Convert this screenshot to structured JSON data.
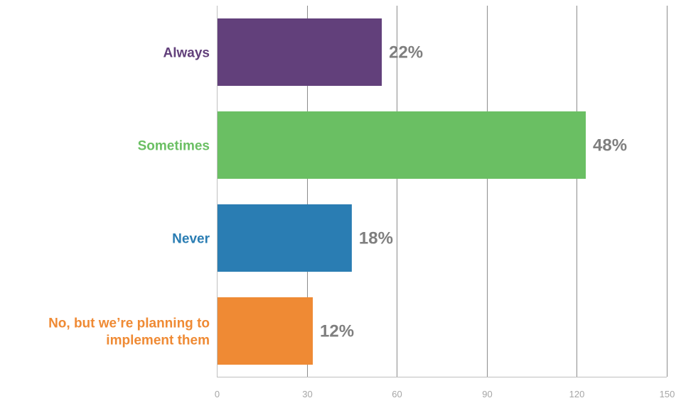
{
  "chart_data": {
    "type": "bar",
    "orientation": "horizontal",
    "categories": [
      "Always",
      "Sometimes",
      "Never",
      "No, but we’re planning to implement them"
    ],
    "category_lines": [
      [
        "Always"
      ],
      [
        "Sometimes"
      ],
      [
        "Never"
      ],
      [
        "No, but we’re planning to",
        "implement them"
      ]
    ],
    "values": [
      55,
      123,
      45,
      32
    ],
    "data_labels": [
      "22%",
      "48%",
      "18%",
      "12%"
    ],
    "colors": [
      "#62407b",
      "#6abf63",
      "#2a7db3",
      "#ef8a34"
    ],
    "label_colors": [
      "#62407b",
      "#6abf63",
      "#2a7db3",
      "#ef8a34"
    ],
    "xlim": [
      0,
      150
    ],
    "x_ticks": [
      0,
      30,
      60,
      90,
      120,
      150
    ],
    "x_tick_labels": [
      "0",
      "30",
      "60",
      "90",
      "120",
      "150"
    ],
    "grid": "vertical",
    "legend": "none"
  }
}
